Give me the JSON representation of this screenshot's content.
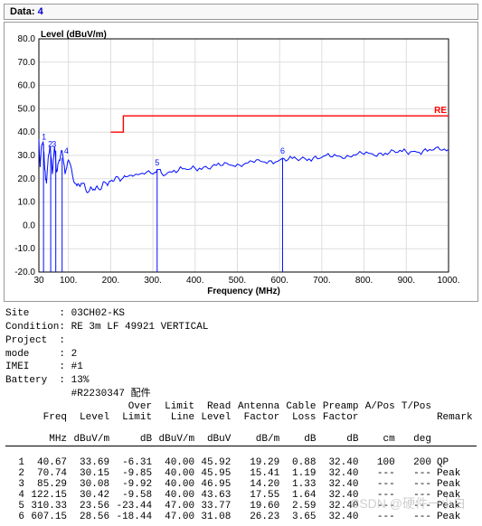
{
  "header": {
    "label": "Data:",
    "value": "4"
  },
  "chart": {
    "type": "line",
    "ylabel": "Level (dBuV/m)",
    "xlabel": "Frequency (MHz)",
    "xlim": [
      30,
      1000
    ],
    "ylim": [
      -20,
      80
    ],
    "xtick_step": 100,
    "ytick_step": 10,
    "xticks": [
      30,
      100,
      200,
      300,
      400,
      500,
      600,
      700,
      800,
      900,
      1000
    ],
    "yticks": [
      -20,
      -10,
      0,
      10,
      20,
      30,
      40,
      50,
      60,
      70,
      80
    ],
    "font_size": 10,
    "background_color": "#ffffff",
    "grid_color": "#dddddd",
    "axis_color": "#000000",
    "trace_color": "#000dff",
    "limit_color": "#ff0000",
    "limit_label": "RE",
    "limit_points": [
      [
        200,
        40
      ],
      [
        230,
        40
      ],
      [
        230,
        47
      ],
      [
        1000,
        47
      ]
    ],
    "markers": [
      {
        "id": "1",
        "x": 42,
        "y": 36,
        "line_to_x": 41
      },
      {
        "id": "2",
        "x": 57,
        "y": 33,
        "line_to_x": 58
      },
      {
        "id": "3",
        "x": 66,
        "y": 33,
        "line_to_x": 70
      },
      {
        "id": "4",
        "x": 95,
        "y": 30,
        "line_to_x": 85
      },
      {
        "id": "5",
        "x": 310,
        "y": 25,
        "line_to_x": 310
      },
      {
        "id": "6",
        "x": 607,
        "y": 30,
        "line_to_x": 607
      }
    ],
    "marker_label_color": "#000dff",
    "trace": [
      [
        30,
        37
      ],
      [
        33,
        25
      ],
      [
        36,
        34
      ],
      [
        40,
        36
      ],
      [
        44,
        24
      ],
      [
        48,
        18
      ],
      [
        52,
        29
      ],
      [
        57,
        34
      ],
      [
        62,
        22
      ],
      [
        67,
        34
      ],
      [
        72,
        23
      ],
      [
        78,
        28
      ],
      [
        85,
        32
      ],
      [
        92,
        22
      ],
      [
        100,
        28
      ],
      [
        110,
        21
      ],
      [
        120,
        17
      ],
      [
        130,
        18
      ],
      [
        140,
        16
      ],
      [
        150,
        15
      ],
      [
        160,
        15.5
      ],
      [
        170,
        16
      ],
      [
        180,
        17
      ],
      [
        190,
        18
      ],
      [
        200,
        19
      ],
      [
        210,
        20
      ],
      [
        220,
        20
      ],
      [
        230,
        20.5
      ],
      [
        240,
        21
      ],
      [
        250,
        21.5
      ],
      [
        260,
        22
      ],
      [
        280,
        22
      ],
      [
        300,
        22
      ],
      [
        310,
        24
      ],
      [
        320,
        22.5
      ],
      [
        340,
        23
      ],
      [
        360,
        23.5
      ],
      [
        380,
        24
      ],
      [
        400,
        24.5
      ],
      [
        420,
        25
      ],
      [
        440,
        25.3
      ],
      [
        460,
        25.7
      ],
      [
        480,
        26
      ],
      [
        500,
        26.3
      ],
      [
        520,
        26.7
      ],
      [
        540,
        27
      ],
      [
        560,
        27.3
      ],
      [
        580,
        27.7
      ],
      [
        600,
        28
      ],
      [
        620,
        28.2
      ],
      [
        640,
        28.5
      ],
      [
        660,
        28.7
      ],
      [
        680,
        29
      ],
      [
        700,
        29.2
      ],
      [
        720,
        29.5
      ],
      [
        740,
        29.7
      ],
      [
        760,
        30
      ],
      [
        780,
        30.2
      ],
      [
        800,
        30.5
      ],
      [
        820,
        30.7
      ],
      [
        840,
        31
      ],
      [
        860,
        31.2
      ],
      [
        880,
        31.4
      ],
      [
        900,
        31.6
      ],
      [
        920,
        31.8
      ],
      [
        940,
        32
      ],
      [
        960,
        32.2
      ],
      [
        980,
        32.4
      ],
      [
        1000,
        32.6
      ]
    ]
  },
  "meta": {
    "Site": "03CH02-KS",
    "Condition": "RE 3m LF 49921 VERTICAL",
    "Project": "",
    "mode": "2",
    "IMEI": "#1",
    "Battery": "13%",
    "extra": "#R2230347 配件"
  },
  "table": {
    "header1": [
      "",
      "",
      "",
      "Over",
      "Limit",
      "Read",
      "Antenna",
      "Cable",
      "Preamp",
      "A/Pos",
      "T/Pos",
      ""
    ],
    "header2": [
      "",
      "Freq",
      "Level",
      "Limit",
      "Line",
      "Level",
      "Factor",
      "Loss",
      "Factor",
      "",
      "",
      "Remark"
    ],
    "units": [
      "",
      "MHz",
      "dBuV/m",
      "dB",
      "dBuV/m",
      "dBuV",
      "dB/m",
      "dB",
      "dB",
      "cm",
      "deg",
      ""
    ],
    "rows": [
      [
        "1",
        "40.67",
        "33.69",
        "-6.31",
        "40.00",
        "45.92",
        "19.29",
        "0.88",
        "32.40",
        "100",
        "200",
        "QP"
      ],
      [
        "2",
        "70.74",
        "30.15",
        "-9.85",
        "40.00",
        "45.95",
        "15.41",
        "1.19",
        "32.40",
        "---",
        "---",
        "Peak"
      ],
      [
        "3",
        "85.29",
        "30.08",
        "-9.92",
        "40.00",
        "46.95",
        "14.20",
        "1.33",
        "32.40",
        "---",
        "---",
        "Peak"
      ],
      [
        "4",
        "122.15",
        "30.42",
        "-9.58",
        "40.00",
        "43.63",
        "17.55",
        "1.64",
        "32.40",
        "---",
        "---",
        "Peak"
      ],
      [
        "5",
        "310.33",
        "23.56",
        "-23.44",
        "47.00",
        "33.77",
        "19.60",
        "2.59",
        "32.40",
        "---",
        "---",
        "Peak"
      ],
      [
        "6",
        "607.15",
        "28.56",
        "-18.44",
        "47.00",
        "31.08",
        "26.23",
        "3.65",
        "32.40",
        "---",
        "---",
        "Peak"
      ]
    ]
  },
  "watermark": "CSDN @硬件一小白"
}
